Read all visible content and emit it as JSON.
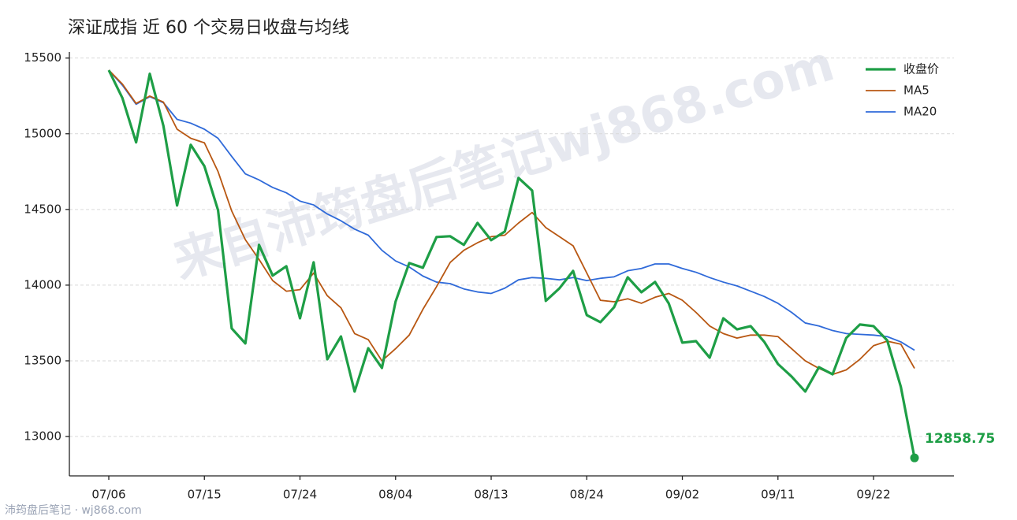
{
  "chart_data": {
    "type": "line",
    "title": "深证成指 近 60 个交易日收盘与均线",
    "watermark": "来自沛筠盘后笔记wj868.com",
    "footer": "沛筠盘后笔记 · wj868.com",
    "categories": [
      "07/06",
      null,
      null,
      null,
      null,
      null,
      null,
      "07/15",
      null,
      null,
      null,
      null,
      null,
      null,
      "07/24",
      null,
      null,
      null,
      null,
      null,
      null,
      "08/04",
      null,
      null,
      null,
      null,
      null,
      null,
      "08/13",
      null,
      null,
      null,
      null,
      null,
      null,
      "08/24",
      null,
      null,
      null,
      null,
      null,
      null,
      "09/02",
      null,
      null,
      null,
      null,
      null,
      null,
      "09/11",
      null,
      null,
      null,
      null,
      null,
      null,
      "09/22",
      null,
      null,
      null
    ],
    "series": [
      {
        "name": "收盘价",
        "color": "#1e9e46",
        "width": 3.2,
        "values": [
          15420,
          15235,
          14943,
          15396,
          15052,
          14526,
          14927,
          14786,
          14495,
          13714,
          13615,
          14266,
          14063,
          14125,
          13781,
          14151,
          13510,
          13661,
          13297,
          13583,
          13453,
          13891,
          14146,
          14115,
          14318,
          14323,
          14266,
          14411,
          14297,
          14354,
          14708,
          14625,
          13896,
          13979,
          14094,
          13802,
          13755,
          13854,
          14052,
          13953,
          14021,
          13880,
          13620,
          13630,
          13521,
          13781,
          13708,
          13729,
          13625,
          13479,
          13396,
          13297,
          13458,
          13411,
          13651,
          13740,
          13729,
          13635,
          13328,
          12858.75
        ]
      },
      {
        "name": "MA5",
        "color": "#b85712",
        "width": 1.8,
        "values": [
          15420,
          15328,
          15200,
          15249,
          15209,
          15030,
          14970,
          14940,
          14750,
          14490,
          14300,
          14170,
          14030,
          13960,
          13970,
          14080,
          13930,
          13850,
          13680,
          13640,
          13500,
          13580,
          13670,
          13840,
          13990,
          14150,
          14230,
          14280,
          14320,
          14330,
          14410,
          14480,
          14380,
          14320,
          14260,
          14080,
          13900,
          13890,
          13910,
          13880,
          13920,
          13945,
          13900,
          13820,
          13730,
          13680,
          13650,
          13670,
          13670,
          13660,
          13580,
          13500,
          13450,
          13410,
          13440,
          13510,
          13600,
          13630,
          13610,
          13450
        ]
      },
      {
        "name": "MA20",
        "color": "#2f6ad9",
        "width": 1.8,
        "values": [
          15420,
          15320,
          15195,
          15245,
          15205,
          15095,
          15070,
          15030,
          14970,
          14850,
          14735,
          14695,
          14645,
          14610,
          14555,
          14530,
          14470,
          14425,
          14370,
          14330,
          14230,
          14160,
          14120,
          14060,
          14020,
          14010,
          13975,
          13955,
          13945,
          13980,
          14035,
          14050,
          14045,
          14035,
          14050,
          14030,
          14045,
          14055,
          14095,
          14110,
          14140,
          14140,
          14110,
          14085,
          14050,
          14020,
          13995,
          13960,
          13925,
          13880,
          13820,
          13750,
          13730,
          13700,
          13680,
          13675,
          13670,
          13660,
          13625,
          13570
        ]
      }
    ],
    "ylim": [
      12740,
      15540
    ],
    "yticks": [
      13000,
      13500,
      14000,
      14500,
      15000,
      15500
    ],
    "grid": true,
    "legend": "upper right"
  }
}
